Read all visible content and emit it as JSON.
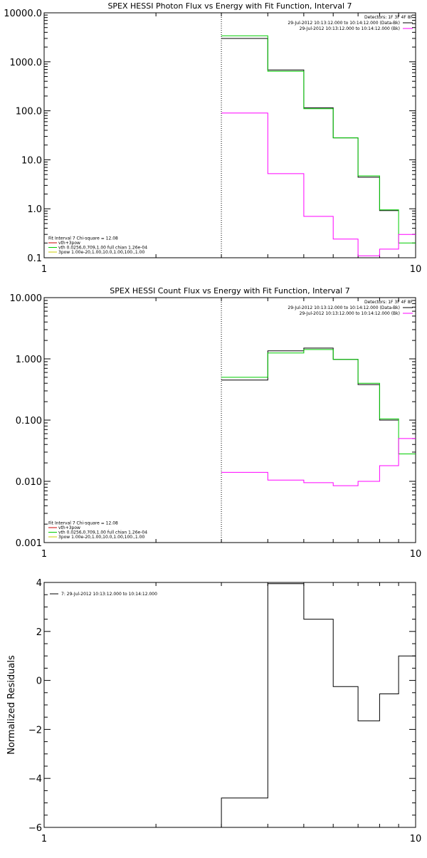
{
  "chart_data": [
    {
      "type": "line",
      "title": "SPEX HESSI Photon Flux vs Energy with Fit Function, Interval 7",
      "xscale": "log",
      "yscale": "log",
      "xlim": [
        1,
        10
      ],
      "ylim": [
        0.1,
        10000
      ],
      "xticks": [
        "1",
        "10"
      ],
      "yticks": [
        {
          "v": 0.1,
          "label": "0.1"
        },
        {
          "v": 1,
          "label": "1.0"
        },
        {
          "v": 10,
          "label": "10.0"
        },
        {
          "v": 100,
          "label": "100.0"
        },
        {
          "v": 1000,
          "label": "1000.0"
        },
        {
          "v": 10000,
          "label": "10000.0"
        }
      ],
      "legend_tr": [
        {
          "text": "Detectors: 1F 3F 4F 8F",
          "color": null
        },
        {
          "text": "29-Jul-2012 10:13:12.000 to 10:14:12.000 (Data-Bk)",
          "color": "#000000"
        },
        {
          "text": "29-Jul-2012 10:13:12.000 to 10:14:12.000 (Bk)",
          "color": "#ff00ff"
        }
      ],
      "legend_bl": [
        {
          "text": "Fit Interval  7   Chi-square = 12.08",
          "color": null
        },
        {
          "text": "vth+3pow",
          "color": "#cc0000"
        },
        {
          "text": "vth 0.0256,0.709,1.00  full chian 1.26e-04",
          "color": "#00cc00"
        },
        {
          "text": "3pow 1.00e-20,1.00,10.0,1.00,100.,1.00",
          "color": "#cccc00"
        }
      ],
      "vline_x": 3,
      "series": [
        {
          "color": "#000000",
          "x": [
            3,
            4,
            4,
            5,
            5,
            6,
            6,
            7,
            7,
            8,
            8,
            9
          ],
          "y": [
            3000,
            3000,
            680,
            680,
            115,
            115,
            28,
            28,
            4.4,
            4.4,
            0.92,
            0.92
          ]
        },
        {
          "color": "#00cc00",
          "x": [
            3,
            4,
            4,
            5,
            5,
            6,
            6,
            7,
            7,
            8,
            8,
            9,
            9,
            10
          ],
          "y": [
            3400,
            3400,
            640,
            640,
            110,
            110,
            28,
            28,
            4.7,
            4.7,
            0.95,
            0.95,
            0.2,
            0.2
          ]
        },
        {
          "color": "#ff00ff",
          "x": [
            3,
            4,
            4,
            5,
            5,
            6,
            6,
            7,
            7,
            8,
            8,
            9,
            9,
            10
          ],
          "y": [
            90,
            90,
            5.2,
            5.2,
            0.7,
            0.7,
            0.24,
            0.24,
            0.11,
            0.11,
            0.15,
            0.15,
            0.3,
            0.3
          ]
        }
      ]
    },
    {
      "type": "line",
      "title": "SPEX HESSI Count Flux vs Energy with Fit Function, Interval 7",
      "xscale": "log",
      "yscale": "log",
      "xlim": [
        1,
        10
      ],
      "ylim": [
        0.001,
        10
      ],
      "xticks": [
        "1",
        "10"
      ],
      "yticks": [
        {
          "v": 0.001,
          "label": "0.001"
        },
        {
          "v": 0.01,
          "label": "0.010"
        },
        {
          "v": 0.1,
          "label": "0.100"
        },
        {
          "v": 1,
          "label": "1.000"
        },
        {
          "v": 10,
          "label": "10.000"
        }
      ],
      "legend_tr": [
        {
          "text": "Detectors: 1F 3F 4F 8F",
          "color": null
        },
        {
          "text": "29-Jul-2012 10:13:12.000 to 10:14:12.000 (Data-Bk)",
          "color": "#000000"
        },
        {
          "text": "29-Jul-2012 10:13:12.000 to 10:14:12.000 (Bk)",
          "color": "#ff00ff"
        }
      ],
      "legend_bl": [
        {
          "text": "Fit Interval  7   Chi-square = 12.08",
          "color": null
        },
        {
          "text": "vth+3pow",
          "color": "#cc0000"
        },
        {
          "text": "vth 0.0256,0.709,1.00  full chian 1.26e-04",
          "color": "#00cc00"
        },
        {
          "text": "3pow 1.00e-20,1.00,10.0,1.00,100.,1.00",
          "color": "#cccc00"
        }
      ],
      "vline_x": 3,
      "series": [
        {
          "color": "#000000",
          "x": [
            3,
            4,
            4,
            5,
            5,
            6,
            6,
            7,
            7,
            8,
            8,
            9
          ],
          "y": [
            0.45,
            0.45,
            1.35,
            1.35,
            1.5,
            1.5,
            0.98,
            0.98,
            0.38,
            0.38,
            0.1,
            0.1
          ]
        },
        {
          "color": "#00cc00",
          "x": [
            3,
            4,
            4,
            5,
            5,
            6,
            6,
            7,
            7,
            8,
            8,
            9,
            9,
            10
          ],
          "y": [
            0.5,
            0.5,
            1.25,
            1.25,
            1.42,
            1.42,
            0.98,
            0.98,
            0.4,
            0.4,
            0.105,
            0.105,
            0.028,
            0.028
          ]
        },
        {
          "color": "#ff00ff",
          "x": [
            3,
            4,
            4,
            5,
            5,
            6,
            6,
            7,
            7,
            8,
            8,
            9,
            9,
            10
          ],
          "y": [
            0.014,
            0.014,
            0.0105,
            0.0105,
            0.0095,
            0.0095,
            0.0085,
            0.0085,
            0.01,
            0.01,
            0.018,
            0.018,
            0.05,
            0.05
          ]
        }
      ]
    },
    {
      "type": "line",
      "title": "",
      "xscale": "log",
      "yscale": "linear",
      "xlim": [
        1,
        10
      ],
      "ylim": [
        -6,
        4
      ],
      "xticks": [
        "1",
        "10"
      ],
      "ylabel": "Normalized Residuals",
      "yticks": [
        {
          "v": -6,
          "label": "−6"
        },
        {
          "v": -4,
          "label": "−4"
        },
        {
          "v": -2,
          "label": "−2"
        },
        {
          "v": 0,
          "label": "0"
        },
        {
          "v": 2,
          "label": "2"
        },
        {
          "v": 4,
          "label": "4"
        }
      ],
      "legend_tl": [
        {
          "text": "7: 29-Jul-2012 10:13:12.000 to 10:14:12.000",
          "color": "#000000"
        }
      ],
      "series": [
        {
          "color": "#000000",
          "x": [
            3,
            3,
            4,
            4,
            5,
            5,
            6,
            6,
            7,
            7,
            8,
            8,
            9,
            9,
            10
          ],
          "y": [
            -6,
            -4.8,
            -4.8,
            3.95,
            3.95,
            2.5,
            2.5,
            -0.25,
            -0.25,
            -1.65,
            -1.65,
            -0.55,
            -0.55,
            1.0,
            1.0
          ]
        }
      ]
    }
  ]
}
